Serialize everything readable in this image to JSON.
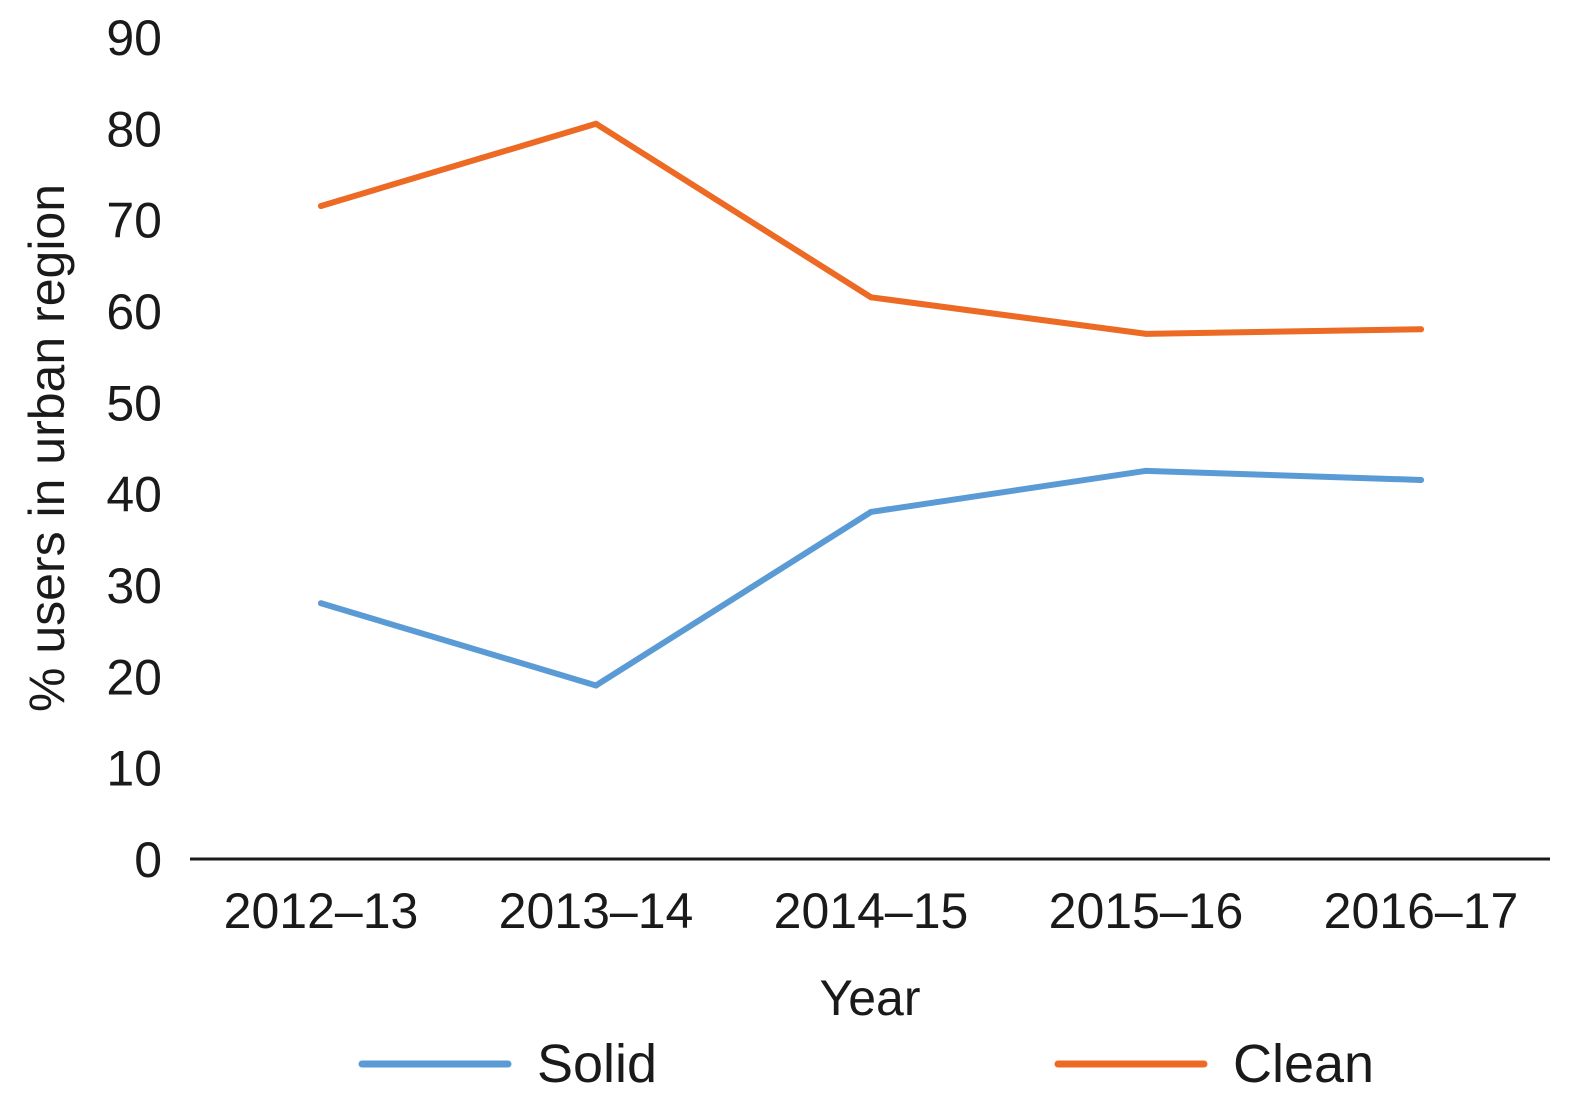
{
  "chart_data": {
    "type": "line",
    "title": "",
    "xlabel": "Year",
    "ylabel": "% users in urban region",
    "categories": [
      "2012–13",
      "2013–14",
      "2014–15",
      "2015–16",
      "2016–17"
    ],
    "ylim": [
      0,
      90
    ],
    "yticks": [
      "0",
      "10",
      "20",
      "30",
      "40",
      "50",
      "60",
      "70",
      "80",
      "90"
    ],
    "grid": false,
    "legend_position": "bottom",
    "series": [
      {
        "name": "Solid",
        "color": "#5b9bd5",
        "values": [
          28,
          19,
          38,
          42.5,
          41.5
        ]
      },
      {
        "name": "Clean",
        "color": "#ed6a24",
        "values": [
          71.5,
          80.5,
          61.5,
          57.5,
          58
        ]
      }
    ]
  }
}
